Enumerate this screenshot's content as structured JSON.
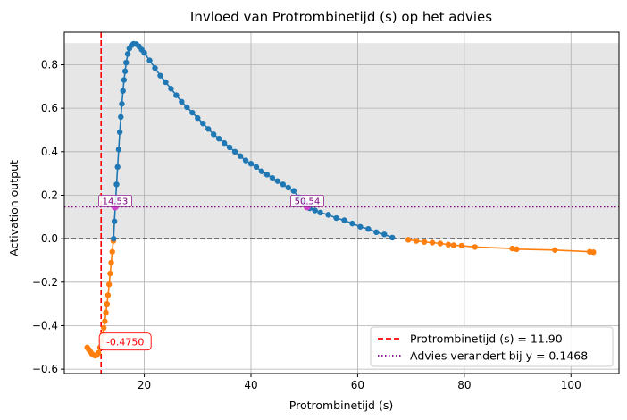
{
  "chart_data": {
    "type": "line",
    "title": "Invloed van Protrombinetijd (s) op het advies",
    "xlabel": "Protrombinetijd (s)",
    "ylabel": "Activation output",
    "xlim": [
      5,
      109
    ],
    "ylim": [
      -0.62,
      0.95
    ],
    "xticks": [
      20,
      40,
      60,
      80,
      100
    ],
    "yticks": [
      -0.6,
      -0.4,
      -0.2,
      0.0,
      0.2,
      0.4,
      0.6,
      0.8
    ],
    "grid": true,
    "shaded_band": {
      "y_from": 0,
      "y_to": 0.9,
      "color": "#e6e6e6"
    },
    "zero_line": {
      "y": 0,
      "color": "#000000",
      "style": "dashed"
    },
    "current_value_line": {
      "x": 11.9,
      "color": "#ff0000",
      "style": "dashed",
      "legend": "Protrombinetijd (s) = 11.90"
    },
    "threshold_line": {
      "y": 0.1468,
      "color": "#800080",
      "style": "dotted",
      "legend": "Advies verandert bij y = 0.1468"
    },
    "crossings": [
      {
        "x": 14.53,
        "y": 0.1468,
        "label": "14.53"
      },
      {
        "x": 50.54,
        "y": 0.1468,
        "label": "50.54"
      }
    ],
    "current_point": {
      "x": 11.9,
      "y": -0.475,
      "label": "-0.4750"
    },
    "series": [
      {
        "color": "#ff7f0e",
        "segment": "negative",
        "points": [
          [
            9.3,
            -0.5
          ],
          [
            9.6,
            -0.51
          ],
          [
            9.9,
            -0.52
          ],
          [
            10.2,
            -0.53
          ],
          [
            10.5,
            -0.535
          ],
          [
            10.8,
            -0.538
          ],
          [
            11.1,
            -0.535
          ],
          [
            11.4,
            -0.525
          ],
          [
            11.7,
            -0.5
          ],
          [
            12.0,
            -0.47
          ],
          [
            12.2,
            -0.44
          ],
          [
            12.4,
            -0.41
          ],
          [
            12.6,
            -0.38
          ],
          [
            12.8,
            -0.34
          ],
          [
            13.0,
            -0.3
          ],
          [
            13.2,
            -0.26
          ],
          [
            13.4,
            -0.21
          ],
          [
            13.6,
            -0.16
          ],
          [
            13.8,
            -0.11
          ],
          [
            14.0,
            -0.06
          ],
          [
            14.2,
            -0.01
          ]
        ]
      },
      {
        "color": "#1f77b4",
        "segment": "positive",
        "points": [
          [
            14.25,
            0.0
          ],
          [
            14.4,
            0.08
          ],
          [
            14.6,
            0.16
          ],
          [
            14.8,
            0.25
          ],
          [
            15.0,
            0.33
          ],
          [
            15.2,
            0.41
          ],
          [
            15.4,
            0.49
          ],
          [
            15.6,
            0.56
          ],
          [
            15.8,
            0.62
          ],
          [
            16.0,
            0.68
          ],
          [
            16.2,
            0.73
          ],
          [
            16.4,
            0.77
          ],
          [
            16.6,
            0.81
          ],
          [
            16.9,
            0.85
          ],
          [
            17.2,
            0.875
          ],
          [
            17.6,
            0.89
          ],
          [
            18.0,
            0.897
          ],
          [
            18.5,
            0.895
          ],
          [
            19.0,
            0.885
          ],
          [
            19.5,
            0.87
          ],
          [
            20.0,
            0.855
          ],
          [
            21.0,
            0.82
          ],
          [
            22.0,
            0.785
          ],
          [
            23.0,
            0.75
          ],
          [
            24.0,
            0.72
          ],
          [
            25.0,
            0.69
          ],
          [
            26.0,
            0.66
          ],
          [
            27.0,
            0.63
          ],
          [
            28.0,
            0.605
          ],
          [
            29.0,
            0.58
          ],
          [
            30.0,
            0.555
          ],
          [
            31.0,
            0.53
          ],
          [
            32.0,
            0.505
          ],
          [
            33.0,
            0.48
          ],
          [
            34.0,
            0.46
          ],
          [
            35.0,
            0.44
          ],
          [
            36.0,
            0.42
          ],
          [
            37.0,
            0.4
          ],
          [
            38.0,
            0.38
          ],
          [
            39.0,
            0.36
          ],
          [
            40.0,
            0.345
          ],
          [
            41.0,
            0.33
          ],
          [
            42.0,
            0.31
          ],
          [
            43.0,
            0.295
          ],
          [
            44.0,
            0.28
          ],
          [
            45.0,
            0.265
          ],
          [
            46.0,
            0.25
          ],
          [
            47.0,
            0.235
          ],
          [
            48.0,
            0.22
          ],
          [
            49.0,
            0.19
          ],
          [
            50.0,
            0.165
          ],
          [
            50.5,
            0.15
          ],
          [
            51.0,
            0.14
          ],
          [
            52.0,
            0.13
          ],
          [
            53.0,
            0.12
          ],
          [
            54.5,
            0.11
          ],
          [
            56.0,
            0.095
          ],
          [
            57.5,
            0.085
          ],
          [
            59.0,
            0.07
          ],
          [
            60.5,
            0.055
          ],
          [
            62.0,
            0.045
          ],
          [
            63.5,
            0.03
          ],
          [
            65.0,
            0.02
          ],
          [
            66.5,
            0.005
          ]
        ]
      },
      {
        "color": "#ff7f0e",
        "segment": "negative",
        "points": [
          [
            69.5,
            -0.005
          ],
          [
            71.0,
            -0.01
          ],
          [
            72.5,
            -0.015
          ],
          [
            74.0,
            -0.018
          ],
          [
            75.5,
            -0.022
          ],
          [
            77.0,
            -0.027
          ],
          [
            78.0,
            -0.03
          ],
          [
            79.5,
            -0.032
          ],
          [
            82.0,
            -0.038
          ],
          [
            89.0,
            -0.045
          ],
          [
            89.8,
            -0.048
          ],
          [
            97.0,
            -0.052
          ],
          [
            103.5,
            -0.06
          ],
          [
            104.2,
            -0.062
          ]
        ]
      }
    ]
  }
}
